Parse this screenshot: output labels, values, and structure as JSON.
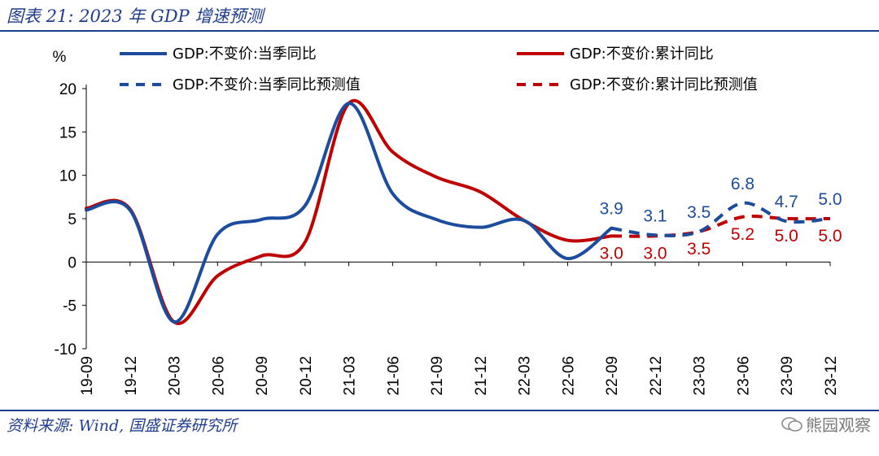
{
  "header": {
    "title": "图表 21:  2023 年 GDP 增速预测"
  },
  "footer": {
    "source": "资料来源:  Wind, 国盛证券研究所",
    "watermark": "熊园观察"
  },
  "colors": {
    "brand": "#1f3d8f",
    "blue": "#1b4c9e",
    "red": "#c00000"
  },
  "chart_data": {
    "type": "line",
    "title": "2023 年 GDP 增速预测",
    "ylabel": "%",
    "xlabel": "",
    "ylim": [
      -10,
      20
    ],
    "yticks": [
      -10,
      -5,
      0,
      5,
      10,
      15,
      20
    ],
    "categories": [
      "19-09",
      "19-12",
      "20-03",
      "20-06",
      "20-09",
      "20-12",
      "21-03",
      "21-06",
      "21-09",
      "21-12",
      "22-03",
      "22-06",
      "22-09",
      "22-12",
      "23-03",
      "23-06",
      "23-09",
      "23-12"
    ],
    "series": [
      {
        "name": "GDP:不变价:当季同比",
        "color": "#1b4c9e",
        "style": "solid",
        "values": [
          6.0,
          6.0,
          -6.9,
          3.2,
          4.9,
          6.5,
          18.3,
          7.9,
          4.9,
          4.0,
          4.8,
          0.4,
          3.9,
          null,
          null,
          null,
          null,
          null
        ]
      },
      {
        "name": "GDP:不变价:累计同比",
        "color": "#c00000",
        "style": "solid",
        "values": [
          6.2,
          6.1,
          -6.9,
          -1.6,
          0.7,
          2.3,
          18.3,
          12.7,
          9.8,
          8.1,
          4.8,
          2.5,
          3.0,
          null,
          null,
          null,
          null,
          null
        ]
      },
      {
        "name": "GDP:不变价:当季同比预测值",
        "color": "#1b4c9e",
        "style": "dashed",
        "values": [
          null,
          null,
          null,
          null,
          null,
          null,
          null,
          null,
          null,
          null,
          null,
          null,
          3.9,
          3.1,
          3.5,
          6.8,
          4.7,
          5.0
        ]
      },
      {
        "name": "GDP:不变价:累计同比预测值",
        "color": "#c00000",
        "style": "dashed",
        "values": [
          null,
          null,
          null,
          null,
          null,
          null,
          null,
          null,
          null,
          null,
          null,
          null,
          3.0,
          3.0,
          3.5,
          5.2,
          5.0,
          5.0
        ]
      }
    ],
    "data_labels": {
      "quarterly_forecast": [
        "3.9",
        "3.1",
        "3.5",
        "6.8",
        "4.7",
        "5.0"
      ],
      "cumulative_forecast": [
        "3.0",
        "3.0",
        "3.5",
        "5.2",
        "5.0",
        "5.0"
      ]
    },
    "legend_position": "top"
  }
}
